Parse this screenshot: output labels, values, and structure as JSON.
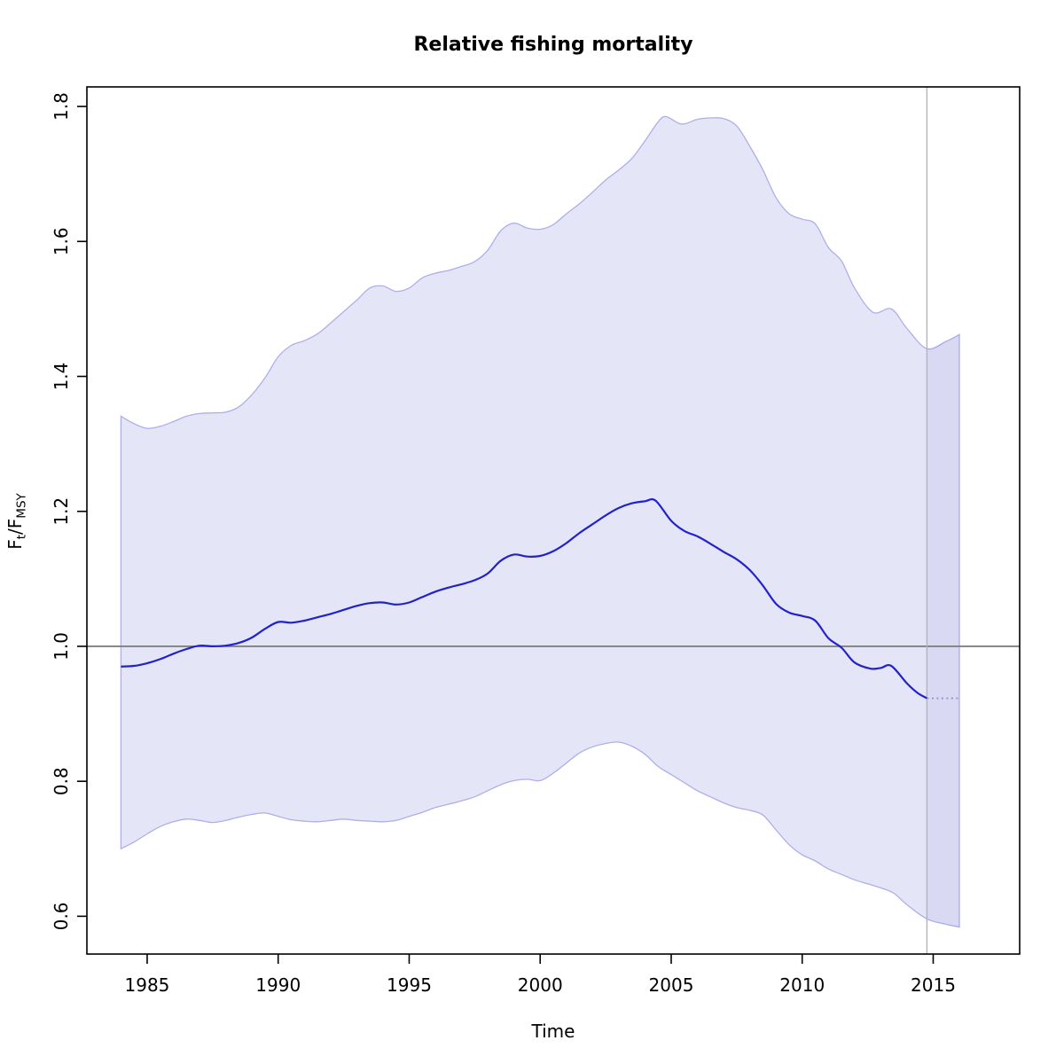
{
  "chart_data": {
    "type": "line",
    "title": "Relative fishing mortality",
    "xlabel": "Time",
    "ylabel_segments": [
      {
        "text": "F",
        "sub": false
      },
      {
        "text": "t",
        "sub": true
      },
      {
        "text": "/",
        "sub": false
      },
      {
        "text": "F",
        "sub": false
      },
      {
        "text": "MSY",
        "sub": true
      }
    ],
    "xlim": [
      1982.7,
      2018.3
    ],
    "ylim": [
      0.544,
      1.829
    ],
    "x_ticks": [
      1985,
      1990,
      1995,
      2000,
      2005,
      2010,
      2015
    ],
    "y_tick_labels": [
      "0.6",
      "0.8",
      "1.0",
      "1.2",
      "1.4",
      "1.6",
      "1.8"
    ],
    "grid": false,
    "legend": null,
    "reference_line_y": 1.0,
    "data_end_x": 2014.76,
    "series": [
      {
        "name": "median",
        "style": "solid",
        "x": [
          1984,
          1984.5,
          1985,
          1985.5,
          1986,
          1986.5,
          1987,
          1987.5,
          1988,
          1988.5,
          1989,
          1989.5,
          1990,
          1990.5,
          1991,
          1991.5,
          1992,
          1992.5,
          1993,
          1993.5,
          1994,
          1994.5,
          1995,
          1995.5,
          1996,
          1996.5,
          1997,
          1997.5,
          1998,
          1998.5,
          1999,
          1999.5,
          2000,
          2000.5,
          2001,
          2001.5,
          2002,
          2002.5,
          2003,
          2003.5,
          2004,
          2004.4,
          2005,
          2005.5,
          2006,
          2006.5,
          2007,
          2007.5,
          2008,
          2008.5,
          2009,
          2009.5,
          2010,
          2010.5,
          2011,
          2011.5,
          2012,
          2012.6,
          2013,
          2013.4,
          2014,
          2014.4,
          2014.76
        ],
        "values": [
          0.97,
          0.971,
          0.975,
          0.981,
          0.989,
          0.996,
          1.001,
          1.0,
          1.001,
          1.005,
          1.013,
          1.026,
          1.036,
          1.035,
          1.038,
          1.043,
          1.048,
          1.054,
          1.06,
          1.064,
          1.065,
          1.062,
          1.065,
          1.073,
          1.081,
          1.087,
          1.092,
          1.098,
          1.108,
          1.127,
          1.136,
          1.133,
          1.134,
          1.141,
          1.153,
          1.168,
          1.181,
          1.194,
          1.205,
          1.212,
          1.215,
          1.216,
          1.186,
          1.171,
          1.163,
          1.152,
          1.14,
          1.129,
          1.113,
          1.09,
          1.063,
          1.05,
          1.045,
          1.038,
          1.012,
          0.998,
          0.976,
          0.967,
          0.968,
          0.971,
          0.945,
          0.931,
          0.923
        ]
      },
      {
        "name": "ci_upper",
        "style": "band-edge",
        "x": [
          1984,
          1984.5,
          1985,
          1985.5,
          1986,
          1986.5,
          1987,
          1987.5,
          1988,
          1988.5,
          1989,
          1989.5,
          1990,
          1990.5,
          1991,
          1991.5,
          1992,
          1992.5,
          1993,
          1993.5,
          1994,
          1994.5,
          1995,
          1995.5,
          1996,
          1996.5,
          1997,
          1997.5,
          1998,
          1998.5,
          1999,
          1999.5,
          2000,
          2000.5,
          2001,
          2001.5,
          2002,
          2002.5,
          2003,
          2003.5,
          2004,
          2004.5,
          2004.8,
          2005.4,
          2006,
          2006.5,
          2007,
          2007.5,
          2008,
          2008.5,
          2009,
          2009.5,
          2010,
          2010.5,
          2011,
          2011.5,
          2012,
          2012.7,
          2013.4,
          2014,
          2014.76,
          2015.5,
          2016
        ],
        "values": [
          1.341,
          1.33,
          1.323,
          1.326,
          1.333,
          1.341,
          1.345,
          1.346,
          1.347,
          1.355,
          1.373,
          1.398,
          1.429,
          1.446,
          1.453,
          1.463,
          1.479,
          1.496,
          1.513,
          1.531,
          1.534,
          1.526,
          1.531,
          1.546,
          1.553,
          1.557,
          1.563,
          1.57,
          1.587,
          1.616,
          1.627,
          1.62,
          1.618,
          1.625,
          1.641,
          1.656,
          1.673,
          1.691,
          1.706,
          1.723,
          1.749,
          1.777,
          1.785,
          1.774,
          1.781,
          1.783,
          1.782,
          1.771,
          1.741,
          1.706,
          1.665,
          1.641,
          1.633,
          1.626,
          1.591,
          1.571,
          1.531,
          1.495,
          1.5,
          1.471,
          1.441,
          1.452,
          1.462
        ]
      },
      {
        "name": "ci_lower",
        "style": "band-edge",
        "x": [
          1984,
          1984.5,
          1985,
          1985.5,
          1986,
          1986.5,
          1987,
          1987.5,
          1988,
          1988.5,
          1989,
          1989.5,
          1990,
          1990.5,
          1991,
          1991.5,
          1992,
          1992.5,
          1993,
          1993.5,
          1994,
          1994.5,
          1995,
          1995.5,
          1996,
          1996.5,
          1997,
          1997.5,
          1998,
          1998.5,
          1999,
          1999.5,
          2000,
          2000.5,
          2001,
          2001.5,
          2002,
          2002.5,
          2003,
          2003.5,
          2004,
          2004.5,
          2005,
          2005.5,
          2006,
          2006.5,
          2007,
          2007.5,
          2008,
          2008.5,
          2009,
          2009.5,
          2010,
          2010.5,
          2011,
          2011.5,
          2012,
          2012.5,
          2013,
          2013.5,
          2014,
          2014.76,
          2015.5,
          2016
        ],
        "values": [
          0.7,
          0.71,
          0.722,
          0.733,
          0.74,
          0.744,
          0.742,
          0.739,
          0.742,
          0.747,
          0.751,
          0.753,
          0.748,
          0.743,
          0.741,
          0.74,
          0.742,
          0.744,
          0.742,
          0.741,
          0.74,
          0.742,
          0.748,
          0.754,
          0.761,
          0.766,
          0.771,
          0.777,
          0.786,
          0.795,
          0.801,
          0.803,
          0.801,
          0.812,
          0.827,
          0.842,
          0.851,
          0.856,
          0.858,
          0.852,
          0.84,
          0.822,
          0.81,
          0.798,
          0.786,
          0.777,
          0.768,
          0.761,
          0.757,
          0.75,
          0.728,
          0.706,
          0.691,
          0.682,
          0.67,
          0.662,
          0.654,
          0.648,
          0.642,
          0.634,
          0.617,
          0.596,
          0.588,
          0.584
        ]
      },
      {
        "name": "median_forecast",
        "style": "dotted",
        "x": [
          2014.76,
          2016.0
        ],
        "values": [
          0.923,
          0.923
        ]
      }
    ],
    "colors": {
      "median_line": "#2222cd",
      "band_fill": "#e5e5f8",
      "band_edge": "#aeaeea",
      "forecast_band_tint": "rgba(70,70,200,0.07)",
      "reference_line": "#808080",
      "data_end_line": "#b4b4b4",
      "forecast_line": "#9494cc",
      "axis": "#000000"
    }
  }
}
